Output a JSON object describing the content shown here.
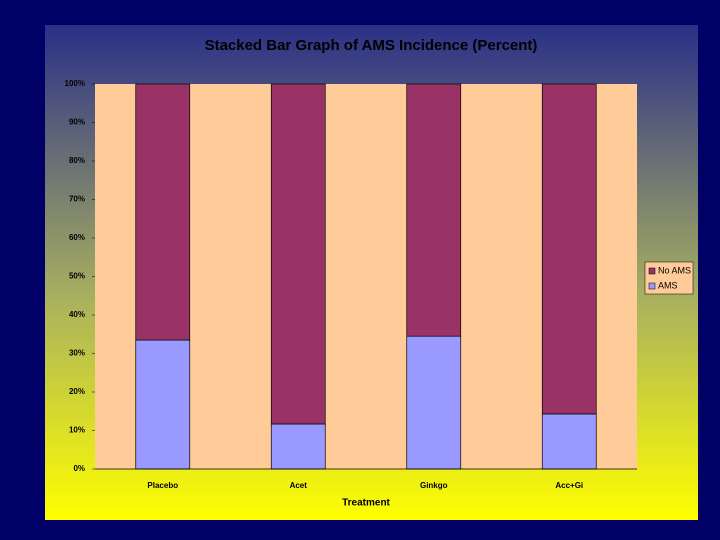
{
  "chart_data": {
    "type": "stacked_bar",
    "title": "Stacked Bar Graph of AMS Incidence (Percent)",
    "x_label": "Treatment",
    "categories": [
      "Placebo",
      "Acet",
      "Ginkgo",
      "Acc+Gi"
    ],
    "series": [
      {
        "name": "AMS",
        "color": "#9999ff",
        "values": [
          33.5,
          11.7,
          34.5,
          14.3
        ]
      },
      {
        "name": "No AMS",
        "color": "#993366",
        "values": [
          66.5,
          88.3,
          65.5,
          85.7
        ]
      }
    ],
    "ylim": [
      0,
      100
    ],
    "yticks": [
      {
        "value": 0,
        "label": "0%"
      },
      {
        "value": 10,
        "label": "10%"
      },
      {
        "value": 20,
        "label": "20%"
      },
      {
        "value": 30,
        "label": "30%"
      },
      {
        "value": 40,
        "label": "40%"
      },
      {
        "value": 50,
        "label": "50%"
      },
      {
        "value": 60,
        "label": "60%"
      },
      {
        "value": 70,
        "label": "70%"
      },
      {
        "value": 80,
        "label": "80%"
      },
      {
        "value": 90,
        "label": "90%"
      },
      {
        "value": 100,
        "label": "100%"
      }
    ],
    "grid": false,
    "legend": "right"
  }
}
